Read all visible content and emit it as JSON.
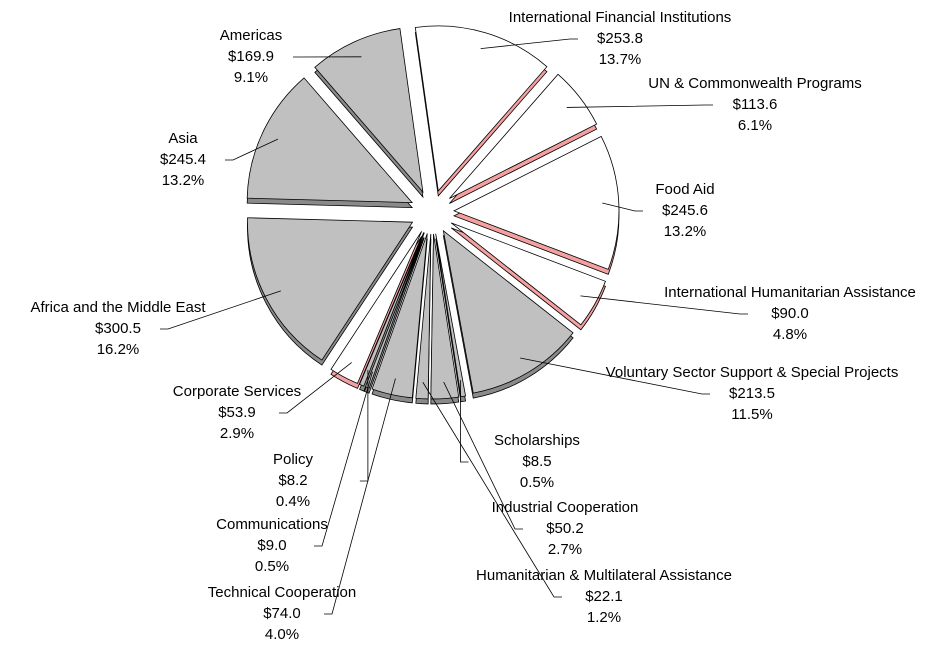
{
  "chart_data": {
    "type": "pie",
    "categories": [
      "International Financial Institutions",
      "UN & Commonwealth Programs",
      "Food Aid",
      "International Humanitarian Assistance",
      "Voluntary Sector Support & Special Projects",
      "Scholarships",
      "Industrial Cooperation",
      "Humanitarian & Multilateral Assistance",
      "Technical Cooperation",
      "Communications",
      "Policy",
      "Corporate Services",
      "Africa and the Middle East",
      "Asia",
      "Americas"
    ],
    "values": [
      253.8,
      113.6,
      245.6,
      90.0,
      213.5,
      8.5,
      50.2,
      22.1,
      74.0,
      9.0,
      8.2,
      53.9,
      300.5,
      245.4,
      169.9
    ],
    "value_labels": [
      "$253.8",
      "$113.6",
      "$245.6",
      "$90.0",
      "$213.5",
      "$8.5",
      "$50.2",
      "$22.1",
      "$74.0",
      "$9.0",
      "$8.2",
      "$53.9",
      "$300.5",
      "$245.4",
      "$169.9"
    ],
    "percent_labels": [
      "13.7%",
      "6.1%",
      "13.2%",
      "4.8%",
      "11.5%",
      "0.5%",
      "2.7%",
      "1.2%",
      "4.0%",
      "0.5%",
      "0.4%",
      "2.9%",
      "16.2%",
      "13.2%",
      "9.1%"
    ],
    "colors": [
      "#ffffff",
      "#ffffff",
      "#ffffff",
      "#ffffff",
      "#c0c0c0",
      "#c0c0c0",
      "#c0c0c0",
      "#c0c0c0",
      "#c0c0c0",
      "#c0c0c0",
      "#c0c0c0",
      "#ffffff",
      "#c0c0c0",
      "#c0c0c0",
      "#c0c0c0"
    ]
  }
}
